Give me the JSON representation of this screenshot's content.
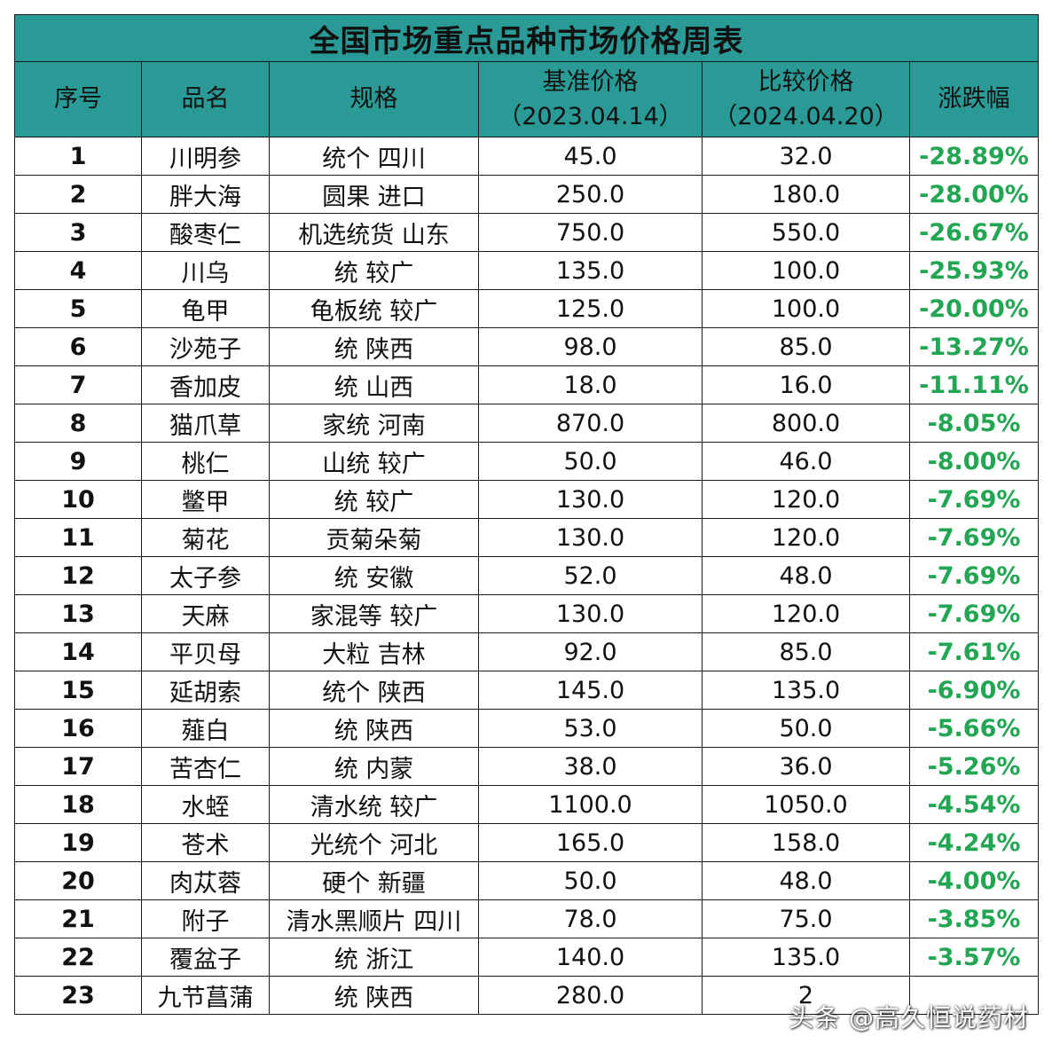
{
  "title": "全国市场重点品种市场价格周表",
  "headers": {
    "index": "序号",
    "name": "品名",
    "spec": "规格",
    "base_price": "基准价格",
    "base_date": "（2023.04.14）",
    "compare_price": "比较价格",
    "compare_date": "（2024.04.20）",
    "change": "涨跌幅"
  },
  "colors": {
    "header_bg": "#2a9a96",
    "change_text": "#22a653"
  },
  "rows": [
    {
      "index": "1",
      "name": "川明参",
      "spec": "统个 四川",
      "base": "45.0",
      "compare": "32.0",
      "change": "-28.89%"
    },
    {
      "index": "2",
      "name": "胖大海",
      "spec": "圆果 进口",
      "base": "250.0",
      "compare": "180.0",
      "change": "-28.00%"
    },
    {
      "index": "3",
      "name": "酸枣仁",
      "spec": "机选统货 山东",
      "base": "750.0",
      "compare": "550.0",
      "change": "-26.67%"
    },
    {
      "index": "4",
      "name": "川乌",
      "spec": "统 较广",
      "base": "135.0",
      "compare": "100.0",
      "change": "-25.93%"
    },
    {
      "index": "5",
      "name": "龟甲",
      "spec": "龟板统 较广",
      "base": "125.0",
      "compare": "100.0",
      "change": "-20.00%"
    },
    {
      "index": "6",
      "name": "沙苑子",
      "spec": "统 陕西",
      "base": "98.0",
      "compare": "85.0",
      "change": "-13.27%"
    },
    {
      "index": "7",
      "name": "香加皮",
      "spec": "统 山西",
      "base": "18.0",
      "compare": "16.0",
      "change": "-11.11%"
    },
    {
      "index": "8",
      "name": "猫爪草",
      "spec": "家统 河南",
      "base": "870.0",
      "compare": "800.0",
      "change": "-8.05%"
    },
    {
      "index": "9",
      "name": "桃仁",
      "spec": "山统 较广",
      "base": "50.0",
      "compare": "46.0",
      "change": "-8.00%"
    },
    {
      "index": "10",
      "name": "鳖甲",
      "spec": "统 较广",
      "base": "130.0",
      "compare": "120.0",
      "change": "-7.69%"
    },
    {
      "index": "11",
      "name": "菊花",
      "spec": "贡菊朵菊",
      "base": "130.0",
      "compare": "120.0",
      "change": "-7.69%"
    },
    {
      "index": "12",
      "name": "太子参",
      "spec": "统 安徽",
      "base": "52.0",
      "compare": "48.0",
      "change": "-7.69%"
    },
    {
      "index": "13",
      "name": "天麻",
      "spec": "家混等 较广",
      "base": "130.0",
      "compare": "120.0",
      "change": "-7.69%"
    },
    {
      "index": "14",
      "name": "平贝母",
      "spec": "大粒 吉林",
      "base": "92.0",
      "compare": "85.0",
      "change": "-7.61%"
    },
    {
      "index": "15",
      "name": "延胡索",
      "spec": "统个 陕西",
      "base": "145.0",
      "compare": "135.0",
      "change": "-6.90%"
    },
    {
      "index": "16",
      "name": "薤白",
      "spec": "统 陕西",
      "base": "53.0",
      "compare": "50.0",
      "change": "-5.66%"
    },
    {
      "index": "17",
      "name": "苦杏仁",
      "spec": "统 内蒙",
      "base": "38.0",
      "compare": "36.0",
      "change": "-5.26%"
    },
    {
      "index": "18",
      "name": "水蛭",
      "spec": "清水统 较广",
      "base": "1100.0",
      "compare": "1050.0",
      "change": "-4.54%"
    },
    {
      "index": "19",
      "name": "苍术",
      "spec": "光统个 河北",
      "base": "165.0",
      "compare": "158.0",
      "change": "-4.24%"
    },
    {
      "index": "20",
      "name": "肉苁蓉",
      "spec": "硬个 新疆",
      "base": "50.0",
      "compare": "48.0",
      "change": "-4.00%"
    },
    {
      "index": "21",
      "name": "附子",
      "spec": "清水黑顺片 四川",
      "base": "78.0",
      "compare": "75.0",
      "change": "-3.85%"
    },
    {
      "index": "22",
      "name": "覆盆子",
      "spec": "统 浙江",
      "base": "140.0",
      "compare": "135.0",
      "change": "-3.57%"
    },
    {
      "index": "23",
      "name": "九节菖蒲",
      "spec": "统 陕西",
      "base": "280.0",
      "compare": "2",
      "change": ""
    }
  ],
  "watermark": "头条 @高久恒说药材"
}
